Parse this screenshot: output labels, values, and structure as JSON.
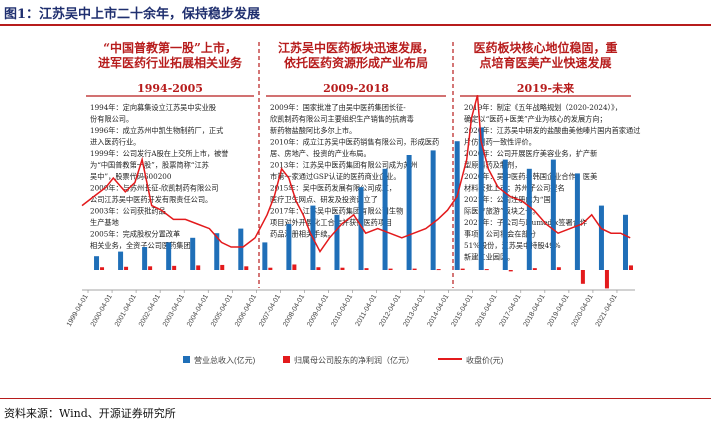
{
  "figure": {
    "title": "图1：江苏吴中上市二十余年，保持稳步发展",
    "source": "资料来源：Wind、开源证券研究所"
  },
  "phases": [
    {
      "headline": [
        "“中国普教第一股”上市，",
        "进军医药行业拓展相关业务"
      ],
      "period": "1994-2005",
      "events": [
        "1994年：定向募集设立江苏吴中实业股",
        "份有限公司。",
        "1996年：成立苏州中凯生物制药厂，正式",
        "进入医药行业。",
        "1999年：公司发行A股在上交所上市，被誉",
        "为“中国普教第一股”，股票简称“江苏",
        "吴中”，股票代码600200",
        "2000年：与苏州长征-欣凯制药有限公司",
        "公司江苏吴中医药开发有限责任公司。",
        "2003年：公司获批药品",
        "生产基地",
        "2005年：完成股权分置改革",
        "相关业务，全资子公司医药集团"
      ]
    },
    {
      "headline": [
        "江苏吴中医药板块迅速发展，",
        "依托医药资源形成产业布局"
      ],
      "period": "2009-2018",
      "events": [
        "2009年：国家批准了由吴中医药集团长征-",
        "欣凯制药有限公司主要组织生产销售的抗病毒",
        "新药物盐酸阿比多尔上市。",
        "2010年：成立江苏吴中医药销售有限公司，形成医药",
        "居、房地产、投资的产业布局。",
        "2013年：江苏吴中医药集团有限公司成为苏州",
        "市第一家通过GSP认证的医药商业企业。",
        "2015年：吴中医药发展有限公司成立，",
        "医疗卫生网点、研发及投资设立了",
        "2017年：江苏吴中医药集团有限公司生物",
        "项目对外开展化工合作并获得医药项目",
        "药品注册相关手续。"
      ]
    },
    {
      "headline": [
        "医药板块核心地位稳固，重",
        "点培育医美产业快速发展"
      ],
      "period": "2019-未来",
      "events": [
        "2019年：制定《五年战略规划（2020-2024）》，",
        "确定以“医药+医美”产业为核心的发展方向；",
        "2020年：江苏吴中研发的盐酸曲美他嗪片国内首家通过",
        "片仿制药一致性评价。",
        "2020年：公司开展医疗美容业务，扩产新",
        "型原料药及制剂，",
        "2020年：吴中医药与韩国企业合作，医美",
        "材料获批上市；苏州子公司提名",
        "2021年：公司注册成为“国",
        "际医疗旅游”板块之一。",
        "2021年：子公司与Humedix签署合作",
        "事项，公司将会在部分",
        "51%股份，江苏吴中持股49%",
        "新建工业园区。"
      ]
    }
  ],
  "legend": [
    "营业总收入(亿元)",
    "归属母公司股东的净利润（亿元）",
    "收盘价(元)"
  ],
  "colors": {
    "revenue": "#1f6fb8",
    "profit": "#e31a1c",
    "price": "#e31a1c",
    "accent": "#b71c1c",
    "title": "#1f2f6f"
  },
  "chart_data": {
    "type": "bar+line",
    "x_ticks": [
      "1999-04-01",
      "2000-04-01",
      "2001-04-01",
      "2002-04-01",
      "2003-04-01",
      "2004-04-01",
      "2005-04-01",
      "2006-04-01",
      "2007-04-01",
      "2008-04-01",
      "2009-04-01",
      "2010-04-01",
      "2011-04-01",
      "2012-04-01",
      "2013-04-01",
      "2014-04-01",
      "2015-04-01",
      "2016-04-01",
      "2017-04-01",
      "2018-04-01",
      "2019-04-01",
      "2020-04-01",
      "2021-04-01"
    ],
    "series": [
      {
        "name": "营业总收入(亿元)",
        "kind": "bar",
        "t": [
          1999.75,
          2000.75,
          2001.75,
          2002.75,
          2003.75,
          2004.75,
          2005.75,
          2006.75,
          2007.75,
          2008.75,
          2009.75,
          2010.75,
          2011.75,
          2012.75,
          2013.75,
          2014.75,
          2015.75,
          2016.75,
          2017.75,
          2018.75,
          2019.75,
          2020.75,
          2021.75
        ],
        "values": [
          3,
          4,
          5,
          6,
          7,
          8,
          9,
          6,
          10,
          14,
          12,
          18,
          22,
          25,
          26,
          28,
          31,
          24,
          22,
          24,
          21,
          14,
          12
        ]
      },
      {
        "name": "归属母公司股东的净利润（亿元）",
        "kind": "bar",
        "t": [
          1999.75,
          2000.75,
          2001.75,
          2002.75,
          2003.75,
          2004.75,
          2005.75,
          2006.75,
          2007.75,
          2008.75,
          2009.75,
          2010.75,
          2011.75,
          2012.75,
          2013.75,
          2014.75,
          2015.75,
          2016.75,
          2017.75,
          2018.75,
          2019.75,
          2020.75,
          2021.75
        ],
        "values": [
          0.6,
          0.7,
          0.8,
          0.9,
          1.0,
          1.1,
          0.8,
          0.5,
          1.2,
          0.6,
          0.5,
          0.4,
          0.3,
          0.3,
          0.2,
          0.3,
          0.2,
          -0.3,
          0.4,
          0.6,
          -3.0,
          -4.0,
          1.0
        ]
      },
      {
        "name": "收盘价(元)",
        "kind": "line",
        "t": [
          1999.0,
          1999.5,
          2000.0,
          2000.3,
          2000.8,
          2001.2,
          2001.5,
          2001.9,
          2002.3,
          2002.8,
          2003.3,
          2003.8,
          2004.3,
          2004.8,
          2005.2,
          2005.7,
          2006.2,
          2006.7,
          2007.0,
          2007.3,
          2007.6,
          2007.9,
          2008.2,
          2008.5,
          2008.9,
          2009.3,
          2009.8,
          2010.3,
          2010.8,
          2011.3,
          2011.8,
          2012.3,
          2012.8,
          2013.3,
          2013.8,
          2014.2,
          2014.6,
          2015.0,
          2015.2,
          2015.45,
          2015.6,
          2015.9,
          2016.3,
          2016.8,
          2017.3,
          2017.8,
          2018.3,
          2018.8,
          2019.3,
          2019.8,
          2020.2,
          2020.6,
          2021.0,
          2021.4,
          2021.8
        ],
        "values": [
          14,
          16,
          18,
          20,
          17,
          19,
          24,
          14,
          13,
          11,
          11,
          10,
          9,
          6,
          5,
          5,
          7,
          12,
          16,
          22,
          20,
          15,
          12,
          8,
          4,
          7,
          10,
          12,
          8,
          9,
          8,
          7,
          8,
          9,
          11,
          13,
          16,
          24,
          33,
          38,
          28,
          22,
          18,
          16,
          15,
          13,
          10,
          8,
          9,
          10,
          12,
          9,
          8,
          8,
          7
        ]
      }
    ],
    "y_left": [
      0,
      40
    ],
    "y_left_scale": "linear",
    "y_right": [
      0,
      40
    ],
    "grid": false,
    "legend_position": "bottom"
  }
}
